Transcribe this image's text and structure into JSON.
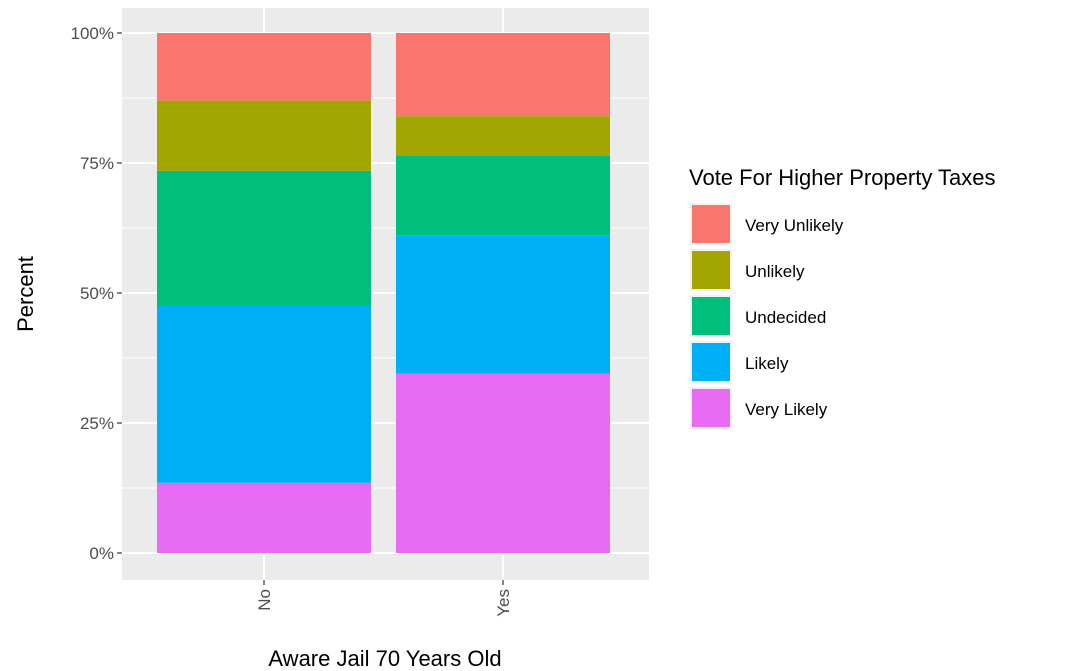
{
  "chart_data": {
    "type": "bar",
    "stacked": true,
    "percent_scale": true,
    "title": "",
    "xlabel": "Aware Jail 70 Years Old",
    "ylabel": "Percent",
    "ylim": [
      0,
      1
    ],
    "y_ticks": [
      0,
      0.25,
      0.5,
      0.75,
      1.0
    ],
    "y_tick_labels": [
      "0%",
      "25%",
      "50%",
      "75%",
      "100%"
    ],
    "categories": [
      "No",
      "Yes"
    ],
    "grid": true,
    "legend_title": "Vote For Higher Property Taxes",
    "legend_position": "right",
    "series": [
      {
        "name": "Very Unlikely",
        "color": "#F8766D",
        "values": [
          0.13,
          0.16
        ]
      },
      {
        "name": "Unlikely",
        "color": "#A3A500",
        "values": [
          0.135,
          0.075
        ]
      },
      {
        "name": "Undecided",
        "color": "#00BF7D",
        "values": [
          0.26,
          0.155
        ]
      },
      {
        "name": "Likely",
        "color": "#00B0F6",
        "values": [
          0.34,
          0.265
        ]
      },
      {
        "name": "Very Likely",
        "color": "#E76BF3",
        "values": [
          0.135,
          0.345
        ]
      }
    ]
  }
}
